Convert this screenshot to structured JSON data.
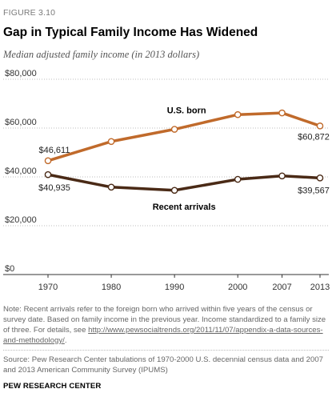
{
  "header": {
    "figure_label": "FIGURE 3.10",
    "title": "Gap in Typical Family Income Has Widened",
    "subtitle": "Median adjusted family income (in 2013 dollars)"
  },
  "chart_data": {
    "type": "line",
    "title": "Gap in Typical Family Income Has Widened",
    "subtitle": "Median adjusted family income (in 2013 dollars)",
    "x": [
      1970,
      1980,
      1990,
      2000,
      2007,
      2013
    ],
    "x_tick_labels": [
      "1970",
      "1980",
      "1990",
      "2000",
      "2007",
      "2013"
    ],
    "ylim": [
      0,
      80000
    ],
    "y_ticks": [
      0,
      20000,
      40000,
      60000,
      80000
    ],
    "y_tick_labels": [
      "$0",
      "$20,000",
      "$40,000",
      "$60,000",
      "$80,000"
    ],
    "grid": "horizontal-dotted",
    "legend": "inline-labels",
    "series": [
      {
        "name": "U.S. born",
        "color": "#c06a2b",
        "values": [
          46611,
          54500,
          59500,
          65500,
          66200,
          60872
        ],
        "data_labels": [
          {
            "index": 0,
            "text": "$46,611"
          },
          {
            "index": 5,
            "text": "$60,872"
          }
        ]
      },
      {
        "name": "Recent arrivals",
        "color": "#4a2a16",
        "values": [
          40935,
          35800,
          34500,
          39000,
          40400,
          39567
        ],
        "data_labels": [
          {
            "index": 0,
            "text": "$40,935"
          },
          {
            "index": 5,
            "text": "$39,567"
          }
        ]
      }
    ]
  },
  "note": {
    "text": "Note: Recent arrivals refer to the foreign born who arrived within five years of the census or survey date. Based on family income in the previous year. Income standardized to a family size of three. For details, see ",
    "link_text": "http://www.pewsocialtrends.org/2011/11/07/appendix-a-data-sources-and-methodology/",
    "text_end": "."
  },
  "source": "Source: Pew Research Center tabulations of 1970-2000 U.S. decennial census data and 2007 and 2013 American Community Survey (IPUMS)",
  "brand": "PEW RESEARCH CENTER"
}
